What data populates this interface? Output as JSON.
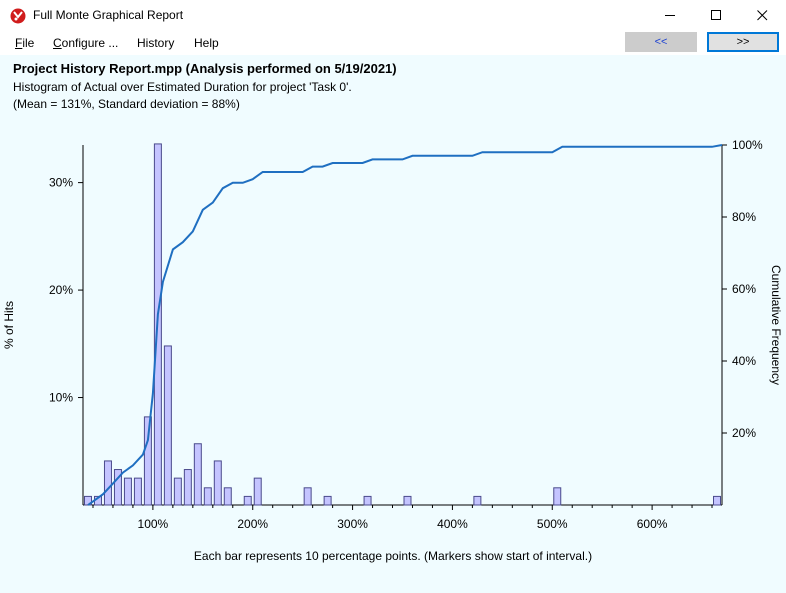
{
  "window": {
    "title": "Full Monte Graphical Report",
    "icon": "full-monte-logo-icon",
    "controls": [
      "minimize-icon",
      "maximize-icon",
      "close-icon"
    ]
  },
  "menu": {
    "file": {
      "accel": "F",
      "rest": "ile"
    },
    "configure": {
      "accel": "C",
      "rest": "onfigure ..."
    },
    "history": "History",
    "help": "Help"
  },
  "nav": {
    "prev": "<<",
    "next": ">>"
  },
  "report": {
    "title": "Project History Report.mpp (Analysis performed on 5/19/2021)",
    "subtitle": "Histogram of Actual over Estimated Duration for project 'Task 0'.",
    "stats": "(Mean = 131%, Standard deviation = 88%)",
    "footnote": "Each bar represents 10 percentage points. (Markers show start of interval.)"
  },
  "chart_data": {
    "type": "bar",
    "ylabel": "% of Hits",
    "y2label": "Cumulative Frequency",
    "x_ticks": [
      100,
      200,
      300,
      400,
      500,
      600
    ],
    "x_tick_labels": [
      "100%",
      "200%",
      "300%",
      "400%",
      "500%",
      "600%"
    ],
    "xlim": [
      30,
      670
    ],
    "y_ticks": [
      10,
      20,
      30
    ],
    "y_tick_labels": [
      "10%",
      "20%",
      "30%"
    ],
    "ylim": [
      0,
      33.5
    ],
    "y2_ticks": [
      20,
      40,
      60,
      80,
      100
    ],
    "y2_tick_labels": [
      "20%",
      "40%",
      "60%",
      "80%",
      "100%"
    ],
    "y2lim": [
      0,
      100
    ],
    "bar_color": "#c4c4ff",
    "bar_edge": "#4a4a8c",
    "line_color": "#1f6fc1",
    "bars": [
      {
        "x": 30,
        "value": 0.8
      },
      {
        "x": 40,
        "value": 0.8
      },
      {
        "x": 50,
        "value": 4.1
      },
      {
        "x": 60,
        "value": 3.3
      },
      {
        "x": 70,
        "value": 2.5
      },
      {
        "x": 80,
        "value": 2.5
      },
      {
        "x": 90,
        "value": 8.2
      },
      {
        "x": 100,
        "value": 33.6
      },
      {
        "x": 110,
        "value": 14.8
      },
      {
        "x": 120,
        "value": 2.5
      },
      {
        "x": 130,
        "value": 3.3
      },
      {
        "x": 140,
        "value": 5.7
      },
      {
        "x": 150,
        "value": 1.6
      },
      {
        "x": 160,
        "value": 4.1
      },
      {
        "x": 170,
        "value": 1.6
      },
      {
        "x": 190,
        "value": 0.8
      },
      {
        "x": 200,
        "value": 2.5
      },
      {
        "x": 250,
        "value": 1.6
      },
      {
        "x": 270,
        "value": 0.8
      },
      {
        "x": 310,
        "value": 0.8
      },
      {
        "x": 350,
        "value": 0.8
      },
      {
        "x": 420,
        "value": 0.8
      },
      {
        "x": 500,
        "value": 1.6
      },
      {
        "x": 660,
        "value": 0.8
      }
    ],
    "cumulative": [
      {
        "x": 35,
        "y": 0
      },
      {
        "x": 40,
        "y": 1
      },
      {
        "x": 50,
        "y": 3
      },
      {
        "x": 60,
        "y": 6
      },
      {
        "x": 70,
        "y": 9
      },
      {
        "x": 80,
        "y": 11
      },
      {
        "x": 90,
        "y": 14
      },
      {
        "x": 95,
        "y": 18
      },
      {
        "x": 100,
        "y": 31
      },
      {
        "x": 105,
        "y": 53
      },
      {
        "x": 110,
        "y": 62
      },
      {
        "x": 120,
        "y": 71
      },
      {
        "x": 130,
        "y": 73
      },
      {
        "x": 140,
        "y": 76
      },
      {
        "x": 150,
        "y": 82
      },
      {
        "x": 160,
        "y": 84
      },
      {
        "x": 170,
        "y": 88
      },
      {
        "x": 180,
        "y": 89.5
      },
      {
        "x": 190,
        "y": 89.5
      },
      {
        "x": 200,
        "y": 90.5
      },
      {
        "x": 210,
        "y": 92.5
      },
      {
        "x": 250,
        "y": 92.5
      },
      {
        "x": 260,
        "y": 94
      },
      {
        "x": 270,
        "y": 94
      },
      {
        "x": 280,
        "y": 95
      },
      {
        "x": 310,
        "y": 95
      },
      {
        "x": 320,
        "y": 96
      },
      {
        "x": 350,
        "y": 96
      },
      {
        "x": 360,
        "y": 97
      },
      {
        "x": 420,
        "y": 97
      },
      {
        "x": 430,
        "y": 98
      },
      {
        "x": 500,
        "y": 98
      },
      {
        "x": 510,
        "y": 99.5
      },
      {
        "x": 660,
        "y": 99.5
      },
      {
        "x": 670,
        "y": 100
      }
    ]
  }
}
